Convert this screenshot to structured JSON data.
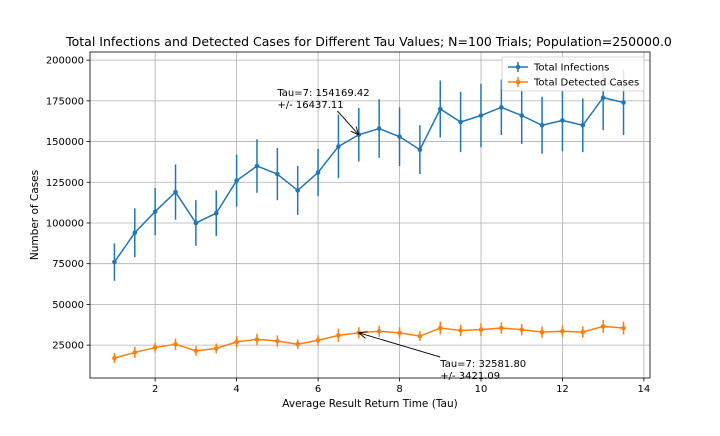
{
  "chart_data": {
    "type": "line",
    "title": "Total Infections and Detected Cases for Different Tau Values; N=100 Trials; Population=250000.0",
    "xlabel": "Average Result Return Time (Tau)",
    "ylabel": "Number of Cases",
    "xlim": [
      0.4,
      14.15
    ],
    "ylim": [
      4800,
      205000
    ],
    "x_ticks": [
      2,
      4,
      6,
      8,
      10,
      12,
      14
    ],
    "x_tick_labels": [
      "2",
      "4",
      "6",
      "8",
      "10",
      "12",
      "14"
    ],
    "y_ticks": [
      25000,
      50000,
      75000,
      100000,
      125000,
      150000,
      175000,
      200000
    ],
    "y_tick_labels": [
      "25000",
      "50000",
      "75000",
      "100000",
      "125000",
      "150000",
      "175000",
      "200000"
    ],
    "grid": true,
    "legend_position": "top-right",
    "x": [
      1.0,
      1.5,
      2.0,
      2.5,
      3.0,
      3.5,
      4.0,
      4.5,
      5.0,
      5.5,
      6.0,
      6.5,
      7.0,
      7.5,
      8.0,
      8.5,
      9.0,
      9.5,
      10.0,
      10.5,
      11.0,
      11.5,
      12.0,
      12.5,
      13.0,
      13.5
    ],
    "series": [
      {
        "name": "Total Infections",
        "color": "#1f77b4",
        "values": [
          76000,
          94000,
          107000,
          119000,
          100000,
          106000,
          126000,
          135000,
          130000,
          120000,
          131000,
          147000,
          154169.42,
          158000,
          153000,
          145000,
          170000,
          162000,
          166000,
          171000,
          166000,
          160000,
          163000,
          160000,
          177000,
          174000
        ],
        "errors": [
          11500,
          15000,
          14500,
          17000,
          14000,
          14000,
          16000,
          16500,
          16000,
          15000,
          14500,
          19500,
          16437.11,
          18000,
          18000,
          15000,
          17500,
          18500,
          19500,
          17000,
          17500,
          17500,
          19000,
          16500,
          20000,
          20000
        ]
      },
      {
        "name": "Total Detected Cases",
        "color": "#ff7f0e",
        "values": [
          17000,
          20500,
          23500,
          25500,
          21500,
          23000,
          27000,
          28500,
          27500,
          25500,
          28000,
          31000,
          32581.8,
          33500,
          32500,
          30500,
          35500,
          34000,
          34500,
          35500,
          34500,
          33000,
          33500,
          33000,
          36500,
          35500
        ],
        "errors": [
          3000,
          3500,
          3000,
          3500,
          3000,
          3000,
          3500,
          3500,
          3500,
          3000,
          3000,
          4000,
          3421.09,
          3500,
          3500,
          3000,
          4000,
          3500,
          4000,
          3500,
          3500,
          3500,
          3500,
          3500,
          4000,
          4000
        ]
      }
    ],
    "annotations": [
      {
        "line1": "Tau=7: 154169.42",
        "line2": "+/- 16437.11",
        "x": 7.0,
        "y": 154169.42,
        "text_x": 5.0,
        "text_y": 178000
      },
      {
        "line1": "Tau=7: 32581.80",
        "line2": "+/- 3421.09",
        "x": 7.0,
        "y": 32581.8,
        "text_x": 9.0,
        "text_y": 11500
      }
    ]
  }
}
